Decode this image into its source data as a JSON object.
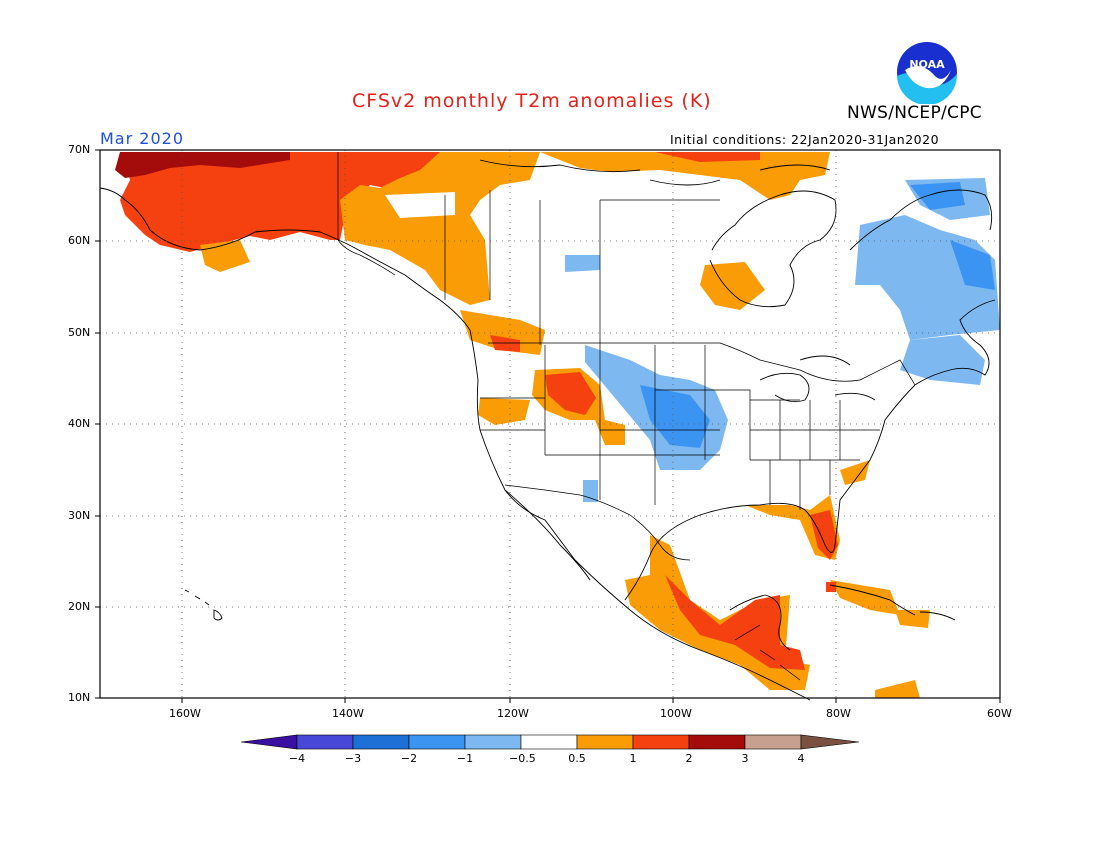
{
  "title": "CFSv2 monthly T2m anomalies (K)",
  "month": "Mar 2020",
  "initial_conditions": "Initial conditions: 22Jan2020-31Jan2020",
  "org": "NWS/NCEP/CPC",
  "logo": {
    "text": "NOAA",
    "icon": "noaa-logo-icon"
  },
  "lat_labels": [
    "70N",
    "60N",
    "50N",
    "40N",
    "30N",
    "20N",
    "10N"
  ],
  "lon_labels": [
    "160W",
    "140W",
    "120W",
    "100W",
    "80W",
    "60W"
  ],
  "colorbar": {
    "labels": [
      "-4",
      "-3",
      "-2",
      "-1",
      "-0.5",
      "0.5",
      "1",
      "2",
      "3",
      "4"
    ],
    "colors": [
      "#3a10a0",
      "#4848d8",
      "#1e6fd6",
      "#3c94f2",
      "#7eb8f0",
      "#ffffff",
      "#f99c05",
      "#f5400f",
      "#a40b0b",
      "#c8a090",
      "#7a5040"
    ]
  },
  "colors": {
    "cool_light": "#7eb8f0",
    "cool": "#3c94f2",
    "warm_light": "#f99c05",
    "warm": "#f5400f",
    "warm_dark": "#a40b0b"
  }
}
